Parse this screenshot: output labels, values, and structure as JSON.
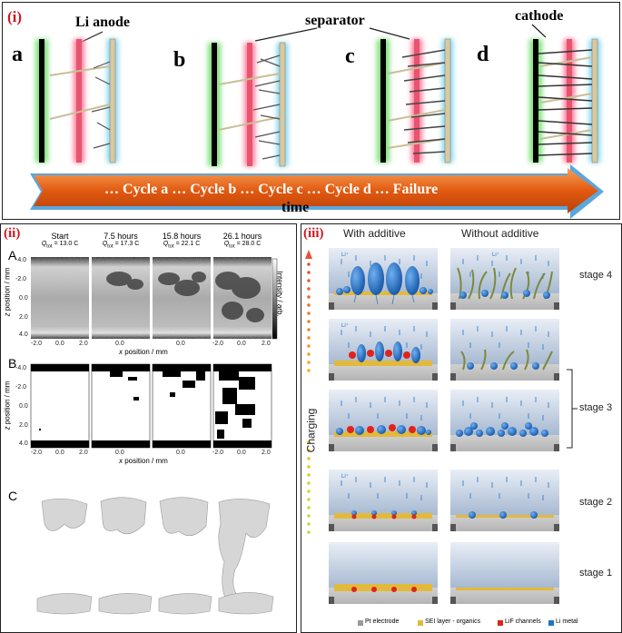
{
  "panel_i": {
    "tag": "(i)",
    "labels": {
      "anode": "Li anode",
      "separator": "separator",
      "cathode": "cathode"
    },
    "letters": [
      "a",
      "b",
      "c",
      "d"
    ],
    "arrow_text": "… Cycle a … Cycle b … Cycle c … Cycle d … Failure",
    "time": "time"
  },
  "panel_ii": {
    "tag": "(ii)",
    "row_a": "A",
    "row_b": "B",
    "row_c": "C",
    "columns": [
      {
        "title": "Start",
        "q": "Q",
        "sub": "tot",
        "val": " = 13.0 C"
      },
      {
        "title": "7.5 hours",
        "q": "Q",
        "sub": "tot",
        "val": " = 17.3 C"
      },
      {
        "title": "15.8 hours",
        "q": "Q",
        "sub": "tot",
        "val": " = 22.1 C"
      },
      {
        "title": "26.1 hours",
        "q": "Q",
        "sub": "tot",
        "val": " = 28.0 C"
      }
    ],
    "y_label_z": "z",
    "y_label_rest": " position / mm",
    "x_label_x": "x",
    "x_label_rest": " position / mm",
    "y_ticks": [
      "-4.0",
      "-2.0",
      "0.0",
      "2.0",
      "4.0"
    ],
    "x_ticks": [
      "-2.0",
      "0.0",
      "2.0"
    ],
    "intensity": "Intensity / arb."
  },
  "panel_iii": {
    "tag": "(iii)",
    "with": "With additive",
    "without": "Without additive",
    "charging": "Charging",
    "stages": [
      "stage 4",
      "stage 3",
      "stage 2",
      "stage 1"
    ],
    "ion": "Li⁺",
    "legend": [
      "Pt electrode",
      "SEI layer - organics",
      "LiF channels",
      "Li metal"
    ],
    "colors": {
      "pt": "#9a9a9a",
      "sei": "#e2b93b",
      "lif": "#e0231c",
      "li": "#1e74c8"
    }
  }
}
